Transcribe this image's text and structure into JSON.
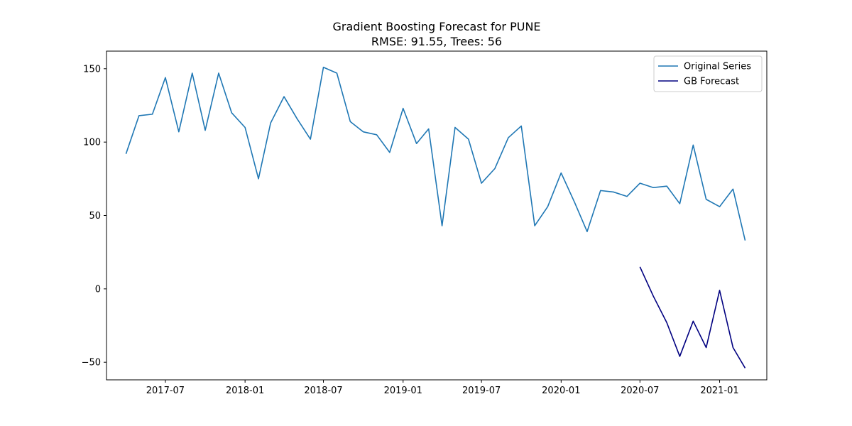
{
  "chart_data": {
    "type": "line",
    "title": "Gradient Boosting Forecast for PUNE",
    "subtitle": "RMSE: 91.55, Trees: 56",
    "xlabel": "",
    "ylabel": "",
    "grid": false,
    "legend_placement": "top-right",
    "xlim": [
      "2017-02-15",
      "2021-04-20"
    ],
    "ylim": [
      -62,
      162
    ],
    "x_ticks": [
      "2017-07",
      "2018-01",
      "2018-07",
      "2019-01",
      "2019-07",
      "2020-01",
      "2020-07",
      "2021-01"
    ],
    "y_ticks": [
      150,
      100,
      50,
      0,
      -50
    ],
    "y_tick_labels": [
      "150",
      "100",
      "50",
      "0",
      "−50"
    ],
    "series": [
      {
        "name": "Original Series",
        "color": "#1f77b4",
        "x": [
          "2017-04",
          "2017-05",
          "2017-06",
          "2017-07",
          "2017-08",
          "2017-09",
          "2017-10",
          "2017-11",
          "2017-12",
          "2018-01",
          "2018-02",
          "2018-03",
          "2018-04",
          "2018-05",
          "2018-06",
          "2018-07",
          "2018-08",
          "2018-09",
          "2018-10",
          "2018-11",
          "2018-12",
          "2019-01",
          "2019-02",
          "2019-03",
          "2019-04",
          "2019-05",
          "2019-06",
          "2019-07",
          "2019-08",
          "2019-09",
          "2019-10",
          "2019-11",
          "2019-12",
          "2020-01",
          "2020-02",
          "2020-03",
          "2020-04",
          "2020-05",
          "2020-06",
          "2020-07",
          "2020-08",
          "2020-09",
          "2020-10",
          "2020-11",
          "2020-12",
          "2021-01",
          "2021-02",
          "2021-03"
        ],
        "values": [
          92,
          118,
          119,
          144,
          107,
          147,
          108,
          147,
          120,
          110,
          75,
          113,
          131,
          116,
          102,
          151,
          147,
          114,
          107,
          105,
          93,
          123,
          99,
          109,
          43,
          110,
          102,
          72,
          82,
          103,
          111,
          43,
          56,
          79,
          59,
          39,
          67,
          66,
          63,
          72,
          69,
          70,
          58,
          98,
          61,
          56,
          68,
          33
        ]
      },
      {
        "name": "GB Forecast",
        "color": "#000080",
        "x": [
          "2020-07",
          "2020-08",
          "2020-09",
          "2020-10",
          "2020-11",
          "2020-12",
          "2021-01",
          "2021-02",
          "2021-03"
        ],
        "values": [
          15,
          -5,
          -23,
          -46,
          -22,
          -40,
          -1,
          -40,
          -54
        ]
      }
    ]
  }
}
